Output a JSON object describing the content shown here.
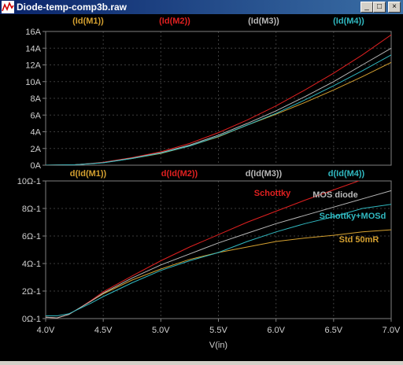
{
  "window": {
    "title": "Diode-temp-comp3b.raw",
    "minimize_glyph": "_",
    "maximize_glyph": "□",
    "close_glyph": "×"
  },
  "colors": {
    "background": "#000000",
    "axis": "#808080",
    "grid": "#3c3c3c",
    "tick_text": "#d0d0d0",
    "titlebar": "#0a246a"
  },
  "chart_data": [
    {
      "type": "line",
      "x_unit": "V",
      "y_unit": "A",
      "xlim": [
        4.0,
        7.0
      ],
      "ylim": [
        0,
        16
      ],
      "grid": true,
      "y_ticks": [
        "0A",
        "2A",
        "4A",
        "6A",
        "8A",
        "10A",
        "12A",
        "14A",
        "16A"
      ],
      "legend": [
        "(Id(M1))",
        "(Id(M2))",
        "(Id(M3))",
        "(Id(M4))"
      ],
      "series": [
        {
          "name": "(Id(M1))",
          "color": "#d4a030",
          "x": [
            4.0,
            4.25,
            4.5,
            4.75,
            5.0,
            5.25,
            5.5,
            5.75,
            6.0,
            6.25,
            6.5,
            6.75,
            7.0
          ],
          "y": [
            0,
            0.05,
            0.3,
            0.8,
            1.4,
            2.3,
            3.4,
            4.8,
            6.1,
            7.5,
            9.0,
            10.6,
            12.3
          ]
        },
        {
          "name": "(Id(M2))",
          "color": "#e02020",
          "x": [
            4.0,
            4.25,
            4.5,
            4.75,
            5.0,
            5.25,
            5.5,
            5.75,
            6.0,
            6.25,
            6.5,
            6.75,
            7.0
          ],
          "y": [
            0,
            0.05,
            0.35,
            0.9,
            1.6,
            2.6,
            3.9,
            5.4,
            7.1,
            9.0,
            11.0,
            13.2,
            15.6
          ]
        },
        {
          "name": "(Id(M3))",
          "color": "#b8b8b8",
          "x": [
            4.0,
            4.25,
            4.5,
            4.75,
            5.0,
            5.25,
            5.5,
            5.75,
            6.0,
            6.25,
            6.5,
            6.75,
            7.0
          ],
          "y": [
            0,
            0.05,
            0.3,
            0.85,
            1.5,
            2.4,
            3.6,
            5.0,
            6.5,
            8.2,
            10.0,
            12.0,
            14.0
          ]
        },
        {
          "name": "(Id(M4))",
          "color": "#30b8c0",
          "x": [
            4.0,
            4.25,
            4.5,
            4.75,
            5.0,
            5.25,
            5.5,
            5.75,
            6.0,
            6.25,
            6.5,
            6.75,
            7.0
          ],
          "y": [
            0,
            0.05,
            0.28,
            0.8,
            1.45,
            2.3,
            3.45,
            4.8,
            6.2,
            7.8,
            9.5,
            11.3,
            13.2
          ]
        }
      ]
    },
    {
      "type": "line",
      "xlabel": "V(in)",
      "x_unit": "V",
      "y_unit": "Ω-1",
      "xlim": [
        4.0,
        7.0
      ],
      "ylim": [
        0,
        10
      ],
      "grid": true,
      "x_ticks": [
        "4.0V",
        "4.5V",
        "5.0V",
        "5.5V",
        "6.0V",
        "6.5V",
        "7.0V"
      ],
      "y_ticks": [
        "0Ω-1",
        "2Ω-1",
        "4Ω-1",
        "6Ω-1",
        "8Ω-1",
        "10Ω-1"
      ],
      "legend": [
        "d(Id(M1))",
        "d(Id(M2))",
        "d(Id(M3))",
        "d(Id(M4))"
      ],
      "annotations": [
        "Schottky",
        "MOS diode",
        "Schottky+MOSd",
        "Std 50mR"
      ],
      "series": [
        {
          "name": "d(Id(M1))",
          "color": "#d4a030",
          "x": [
            4.0,
            4.1,
            4.2,
            4.3,
            4.4,
            4.5,
            4.75,
            5.0,
            5.25,
            5.5,
            5.75,
            6.0,
            6.25,
            6.5,
            6.75,
            7.0
          ],
          "y": [
            0.1,
            0.05,
            0.3,
            0.8,
            1.3,
            1.8,
            2.8,
            3.6,
            4.3,
            4.8,
            5.2,
            5.6,
            5.85,
            6.05,
            6.3,
            6.45
          ]
        },
        {
          "name": "d(Id(M2))",
          "color": "#e02020",
          "x": [
            4.0,
            4.1,
            4.2,
            4.3,
            4.4,
            4.5,
            4.75,
            5.0,
            5.25,
            5.5,
            5.75,
            6.0,
            6.25,
            6.5,
            6.75,
            7.0
          ],
          "y": [
            0.1,
            0.05,
            0.3,
            0.8,
            1.35,
            1.95,
            3.1,
            4.2,
            5.2,
            6.1,
            7.0,
            7.8,
            8.6,
            9.35,
            10.1,
            10.9
          ]
        },
        {
          "name": "d(Id(M3))",
          "color": "#b8b8b8",
          "x": [
            4.0,
            4.1,
            4.2,
            4.3,
            4.4,
            4.5,
            4.75,
            5.0,
            5.25,
            5.5,
            5.75,
            6.0,
            6.25,
            6.5,
            6.75,
            7.0
          ],
          "y": [
            0.1,
            0.05,
            0.3,
            0.8,
            1.3,
            1.85,
            2.95,
            3.9,
            4.7,
            5.5,
            6.2,
            6.9,
            7.5,
            8.1,
            8.7,
            9.3
          ]
        },
        {
          "name": "d(Id(M4))",
          "color": "#30b8c0",
          "x": [
            4.0,
            4.1,
            4.2,
            4.3,
            4.4,
            4.5,
            4.75,
            5.0,
            5.25,
            5.5,
            5.75,
            6.0,
            6.25,
            6.5,
            6.75,
            7.0
          ],
          "y": [
            0.2,
            0.2,
            0.35,
            0.75,
            1.15,
            1.6,
            2.6,
            3.5,
            4.2,
            4.8,
            5.6,
            6.3,
            6.9,
            7.4,
            8.0,
            8.3
          ]
        }
      ]
    }
  ]
}
